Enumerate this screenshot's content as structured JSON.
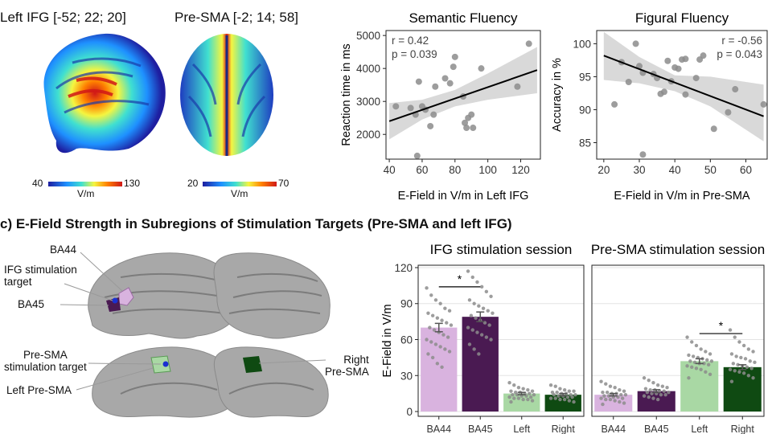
{
  "brain_panel": {
    "ifg_title": "Left IFG [-52; 22; 20]",
    "sma_title": "Pre-SMA [-2; 14; 58]",
    "ifg_colorbar": {
      "min": "40",
      "max": "130",
      "unit": "V/m"
    },
    "sma_colorbar": {
      "min": "20",
      "max": "70",
      "unit": "V/m"
    },
    "colormap": [
      "#1e1ea0",
      "#1e90ff",
      "#40e0d0",
      "#f5f540",
      "#ff8000",
      "#d01818"
    ]
  },
  "section_c": {
    "title": "c) E-Field Strength in Subregions of Stimulation Targets (Pre-SMA and left IFG)",
    "labels": {
      "ba44": "BA44",
      "ifg_target": "IFG stimulation\ntarget",
      "ba45": "BA45",
      "sma_target": "Pre-SMA\nstimulation target",
      "left_presma": "Left Pre-SMA",
      "right_presma": "Right\nPre-SMA"
    }
  },
  "chart_data": [
    {
      "type": "scatter",
      "title": "Semantic Fluency",
      "xlabel": "E-Field in V/m in Left IFG",
      "ylabel": "Reaction time in ms",
      "xlim": [
        38,
        132
      ],
      "ylim": [
        1250,
        5150
      ],
      "xticks": [
        40,
        60,
        80,
        100,
        120
      ],
      "yticks": [
        2000,
        3000,
        4000,
        5000
      ],
      "annotation": [
        "r = 0.42",
        "p = 0.039"
      ],
      "fit": {
        "x": [
          40,
          130
        ],
        "y": [
          2400,
          3950
        ]
      },
      "band": {
        "x": [
          40,
          60,
          80,
          100,
          130
        ],
        "lower": [
          1850,
          2450,
          2850,
          3050,
          3250
        ],
        "upper": [
          2950,
          3050,
          3350,
          3850,
          4650
        ]
      },
      "points": [
        [
          44,
          2850
        ],
        [
          53,
          2800
        ],
        [
          56,
          2600
        ],
        [
          58,
          3600
        ],
        [
          60,
          2850
        ],
        [
          62,
          2750
        ],
        [
          65,
          2250
        ],
        [
          67,
          2600
        ],
        [
          68,
          3450
        ],
        [
          74,
          3700
        ],
        [
          77,
          3550
        ],
        [
          79,
          4050
        ],
        [
          80,
          4350
        ],
        [
          85,
          3150
        ],
        [
          86,
          2350
        ],
        [
          87,
          2200
        ],
        [
          88,
          2500
        ],
        [
          90,
          2600
        ],
        [
          91,
          2200
        ],
        [
          96,
          4000
        ],
        [
          118,
          3450
        ],
        [
          125,
          4750
        ],
        [
          57,
          1350
        ]
      ]
    },
    {
      "type": "scatter",
      "title": "Figural Fluency",
      "xlabel": "E-Field in V/m in Pre-SMA",
      "ylabel": "Accuracy in %",
      "xlim": [
        18,
        66
      ],
      "ylim": [
        82.5,
        102
      ],
      "xticks": [
        20,
        30,
        40,
        50,
        60
      ],
      "yticks": [
        85,
        90,
        95,
        100
      ],
      "annotation": [
        "r = -0.56",
        "p = 0.043"
      ],
      "fit": {
        "x": [
          20,
          65
        ],
        "y": [
          98.2,
          89.0
        ]
      },
      "band": {
        "x": [
          20,
          30,
          40,
          50,
          65
        ],
        "lower": [
          94.5,
          94.0,
          92.8,
          90.5,
          85.2
        ],
        "upper": [
          101.8,
          98.0,
          95.2,
          95.0,
          93.8
        ]
      },
      "points": [
        [
          23,
          90.8
        ],
        [
          25,
          97.2
        ],
        [
          27,
          94.2
        ],
        [
          29,
          100.0
        ],
        [
          30,
          96.6
        ],
        [
          31,
          95.6
        ],
        [
          31,
          83.2
        ],
        [
          34,
          95.4
        ],
        [
          35,
          94.8
        ],
        [
          36,
          92.4
        ],
        [
          37,
          92.7
        ],
        [
          38,
          97.4
        ],
        [
          39,
          94.3
        ],
        [
          40,
          96.4
        ],
        [
          41,
          96.2
        ],
        [
          42,
          97.6
        ],
        [
          43,
          92.3
        ],
        [
          43,
          97.7
        ],
        [
          46,
          94.8
        ],
        [
          47,
          97.6
        ],
        [
          48,
          98.2
        ],
        [
          51,
          87.1
        ],
        [
          55,
          89.6
        ],
        [
          57,
          93.1
        ],
        [
          65,
          90.8
        ]
      ]
    },
    {
      "type": "bar",
      "title": "IFG stimulation session",
      "ylabel": "E-Field in V/m",
      "ylim": [
        -4,
        122
      ],
      "yticks": [
        0,
        30,
        60,
        90,
        120
      ],
      "categories": [
        "BA44",
        "BA45",
        "Left",
        "Right"
      ],
      "values": [
        70,
        79,
        15,
        14
      ],
      "errors": [
        3.5,
        4,
        1,
        1
      ],
      "colors": [
        "#d9b3df",
        "#4a1a52",
        "#a9d8a4",
        "#0f4a12"
      ],
      "significance": {
        "from": 0,
        "to": 1,
        "y": 104,
        "label": "*"
      },
      "jitter": [
        [
          103,
          97,
          93,
          90,
          86,
          84,
          82,
          80,
          78,
          76,
          74,
          72,
          70,
          68,
          66,
          64,
          62,
          60,
          58,
          56,
          54,
          52,
          50,
          48,
          45,
          40,
          37
        ],
        [
          117,
          112,
          108,
          104,
          100,
          96,
          93,
          90,
          88,
          86,
          84,
          82,
          80,
          78,
          76,
          74,
          72,
          70,
          68,
          66,
          64,
          62,
          60,
          56,
          52,
          48
        ],
        [
          24,
          22,
          20,
          19,
          18,
          17,
          17,
          16,
          16,
          15,
          15,
          14,
          14,
          14,
          13,
          13,
          12,
          12,
          11,
          11,
          10,
          10,
          9,
          8
        ],
        [
          22,
          21,
          19,
          18,
          17,
          17,
          16,
          16,
          15,
          15,
          14,
          14,
          14,
          13,
          13,
          12,
          12,
          11,
          11,
          10,
          10,
          9,
          8
        ]
      ]
    },
    {
      "type": "bar",
      "title": "Pre-SMA stimulation session",
      "ylim": [
        -4,
        122
      ],
      "yticks": [
        0,
        30,
        60,
        90,
        120
      ],
      "categories": [
        "BA44",
        "BA45",
        "Left",
        "Right"
      ],
      "values": [
        14,
        17,
        42,
        37
      ],
      "errors": [
        1,
        1.2,
        2,
        2
      ],
      "colors": [
        "#d9b3df",
        "#4a1a52",
        "#a9d8a4",
        "#0f4a12"
      ],
      "significance": {
        "from": 2,
        "to": 3,
        "y": 65,
        "label": "*"
      },
      "jitter": [
        [
          25,
          23,
          21,
          20,
          18,
          17,
          16,
          16,
          15,
          15,
          14,
          14,
          13,
          13,
          12,
          12,
          11,
          11,
          10,
          10,
          9,
          8,
          7,
          6
        ],
        [
          28,
          26,
          24,
          22,
          21,
          20,
          19,
          18,
          18,
          17,
          17,
          16,
          16,
          15,
          15,
          14,
          14,
          13,
          12,
          11,
          10
        ],
        [
          62,
          58,
          55,
          52,
          50,
          48,
          47,
          46,
          45,
          44,
          43,
          42,
          42,
          41,
          40,
          40,
          39,
          38,
          37,
          36,
          35,
          33,
          31,
          28
        ],
        [
          68,
          62,
          58,
          55,
          52,
          50,
          48,
          46,
          45,
          44,
          42,
          41,
          40,
          39,
          38,
          37,
          36,
          35,
          34,
          33,
          32,
          30,
          28,
          25
        ]
      ]
    }
  ]
}
